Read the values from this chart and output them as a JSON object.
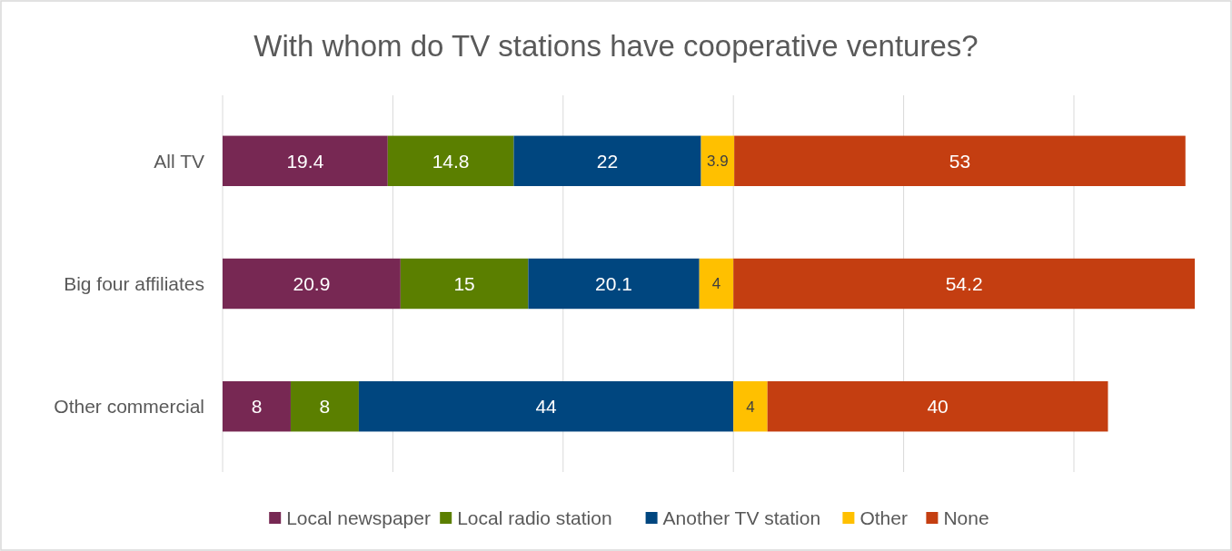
{
  "chart_data": {
    "type": "bar",
    "orientation": "horizontal",
    "stacked": true,
    "title": "With whom do TV stations have cooperative ventures?",
    "categories": [
      "All TV",
      "Big four affiliates",
      "Other commercial"
    ],
    "series": [
      {
        "name": "Local newspaper",
        "color": "#772853",
        "values": [
          19.4,
          20.9,
          8
        ]
      },
      {
        "name": "Local radio station",
        "color": "#5b7f00",
        "values": [
          14.8,
          15,
          8
        ]
      },
      {
        "name": "Another TV station",
        "color": "#00467f",
        "values": [
          22,
          20.1,
          44
        ]
      },
      {
        "name": "Other",
        "color": "#ffc000",
        "values": [
          3.9,
          4,
          4
        ]
      },
      {
        "name": "None",
        "color": "#c43e11",
        "values": [
          53,
          54.2,
          40
        ]
      }
    ],
    "xticks": [
      {
        "value": 0,
        "label": null
      },
      {
        "value": 20,
        "label": null
      },
      {
        "value": 40,
        "label": null
      },
      {
        "value": 60,
        "label": null
      },
      {
        "value": 80,
        "label": null
      },
      {
        "value": 100,
        "label": null
      }
    ],
    "tick_labels": "y",
    "grid": "x",
    "legend": "bottom",
    "data_labels": true
  }
}
